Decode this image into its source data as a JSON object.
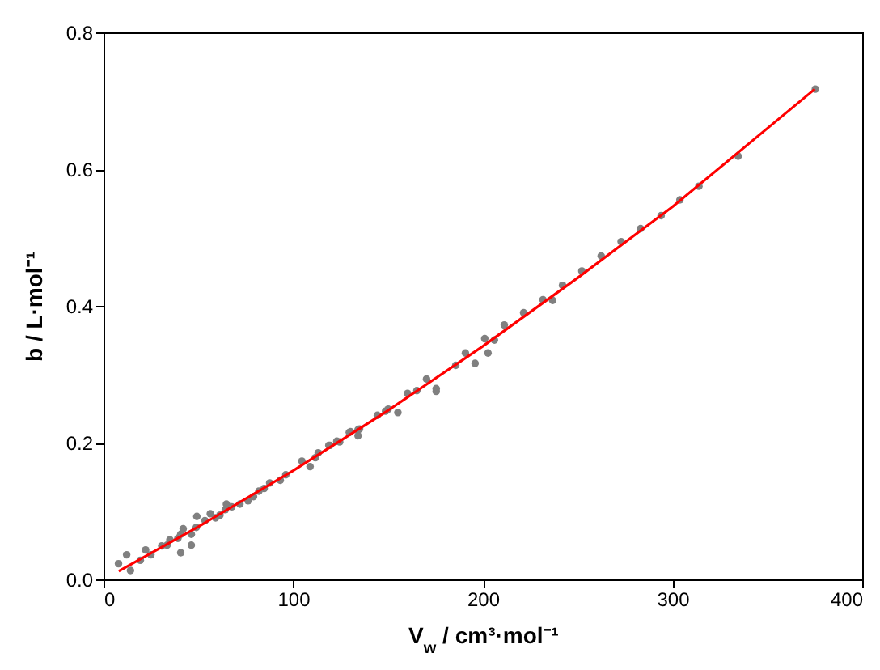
{
  "chart_data": {
    "type": "scatter",
    "xlabel": "V$_{w}$ / cm³·mol⁻¹",
    "ylabel": "b / L·mol⁻¹",
    "xlim": [
      0,
      400
    ],
    "ylim": [
      0,
      0.8
    ],
    "xticks": [
      0,
      100,
      200,
      300,
      400
    ],
    "yticks": [
      {
        "value": 0,
        "label": "0.0"
      },
      {
        "value": 0.2,
        "label": "0.2"
      },
      {
        "value": 0.4,
        "label": "0.4"
      },
      {
        "value": 0.6,
        "label": "0.6"
      },
      {
        "value": 0.8,
        "label": "0.8"
      }
    ],
    "grid": false,
    "marker": "circle",
    "series": [
      {
        "color": "#808080",
        "x": [
          7.9,
          12.2,
          14.2,
          19.4,
          22.2,
          25.0,
          30.7,
          33.5,
          35.0,
          39.2,
          40.7,
          40.7,
          42.0,
          46.3,
          46.3,
          48.9,
          49.2,
          53.5,
          56.3,
          59.1,
          61.4,
          64.2,
          64.8,
          67.6,
          71.9,
          76.2,
          79.1,
          81.9,
          84.7,
          87.6,
          93.2,
          96.1,
          104.6,
          108.9,
          111.7,
          113.2,
          118.8,
          119.4,
          123.0,
          124.5,
          129.6,
          130.2,
          134.2,
          134.2,
          135.0,
          144.4,
          148.7,
          150.1,
          155.2,
          160.3,
          165.2,
          170.3,
          175.4,
          175.4,
          185.7,
          190.8,
          195.9,
          201.0,
          202.7,
          206.1,
          211.3,
          221.5,
          231.7,
          236.8,
          242.0,
          252.2,
          262.4,
          272.9,
          283.2,
          294.0,
          303.9,
          313.9,
          334.6,
          375.3
        ],
        "values": [
          0.023,
          0.036,
          0.013,
          0.028,
          0.043,
          0.036,
          0.049,
          0.05,
          0.058,
          0.06,
          0.066,
          0.039,
          0.074,
          0.066,
          0.05,
          0.076,
          0.092,
          0.086,
          0.096,
          0.09,
          0.094,
          0.102,
          0.11,
          0.106,
          0.11,
          0.115,
          0.121,
          0.129,
          0.133,
          0.141,
          0.145,
          0.153,
          0.173,
          0.165,
          0.178,
          0.185,
          0.196,
          0.196,
          0.202,
          0.201,
          0.215,
          0.216,
          0.219,
          0.21,
          0.22,
          0.24,
          0.246,
          0.249,
          0.244,
          0.272,
          0.276,
          0.293,
          0.279,
          0.275,
          0.313,
          0.331,
          0.316,
          0.352,
          0.331,
          0.35,
          0.372,
          0.39,
          0.409,
          0.408,
          0.43,
          0.451,
          0.473,
          0.494,
          0.513,
          0.532,
          0.555,
          0.575,
          0.619,
          0.717
        ]
      },
      {
        "type": "line",
        "color": "#ff0000",
        "marker": "none",
        "line_style": "solid",
        "x": [
          8,
          50,
          100,
          150,
          200,
          250,
          300,
          375
        ],
        "values": [
          0.012,
          0.077,
          0.159,
          0.247,
          0.341,
          0.441,
          0.545,
          0.717
        ]
      }
    ]
  }
}
